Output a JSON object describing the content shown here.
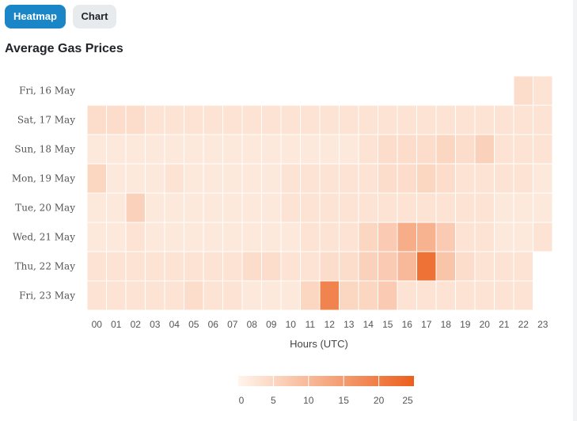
{
  "tabs": [
    {
      "label": "Heatmap",
      "active": true
    },
    {
      "label": "Chart",
      "active": false
    }
  ],
  "colors": {
    "accent": "#1a86c8",
    "scale_low": "#fff5ec",
    "scale_high": "#ec5f1c"
  },
  "chart_data": {
    "type": "heatmap",
    "title": "Average Gas Prices",
    "xlabel": "Hours (UTC)",
    "ylabel": "",
    "x": [
      "00",
      "01",
      "02",
      "03",
      "04",
      "05",
      "06",
      "07",
      "08",
      "09",
      "10",
      "11",
      "12",
      "13",
      "14",
      "15",
      "16",
      "17",
      "18",
      "19",
      "20",
      "21",
      "22",
      "23"
    ],
    "y": [
      "Fri, 16 May",
      "Sat, 17 May",
      "Sun, 18 May",
      "Mon, 19 May",
      "Tue, 20 May",
      "Wed, 21 May",
      "Thu, 22 May",
      "Fri, 23 May"
    ],
    "values": [
      [
        null,
        null,
        null,
        null,
        null,
        null,
        null,
        null,
        null,
        null,
        null,
        null,
        null,
        null,
        null,
        null,
        null,
        null,
        null,
        null,
        null,
        null,
        4,
        3
      ],
      [
        4,
        4,
        4,
        3,
        3,
        3,
        3,
        3,
        3,
        3,
        3,
        3,
        3,
        3,
        3,
        3,
        3,
        3,
        3,
        3,
        3,
        3,
        3,
        3
      ],
      [
        2,
        2,
        2,
        2,
        2,
        2,
        2,
        2,
        2,
        2,
        2,
        2,
        2,
        2,
        3,
        4,
        4,
        4,
        5,
        4,
        6,
        3,
        3,
        3
      ],
      [
        5,
        2,
        2,
        2,
        3,
        2,
        2,
        2,
        2,
        2,
        3,
        3,
        3,
        3,
        3,
        4,
        4,
        5,
        4,
        3,
        3,
        3,
        3,
        2
      ],
      [
        2,
        2,
        6,
        2,
        2,
        2,
        2,
        2,
        2,
        2,
        3,
        3,
        3,
        3,
        3,
        3,
        3,
        3,
        3,
        3,
        3,
        2,
        2,
        2
      ],
      [
        2,
        2,
        3,
        2,
        2,
        2,
        2,
        2,
        2,
        2,
        2,
        3,
        3,
        3,
        5,
        7,
        12,
        11,
        7,
        3,
        3,
        2,
        2,
        3
      ],
      [
        3,
        3,
        3,
        3,
        3,
        3,
        3,
        3,
        4,
        4,
        3,
        3,
        4,
        4,
        6,
        7,
        10,
        22,
        8,
        4,
        3,
        3,
        3,
        null
      ],
      [
        3,
        3,
        3,
        3,
        3,
        4,
        3,
        3,
        2,
        2,
        2,
        5,
        19,
        5,
        5,
        7,
        3,
        3,
        3,
        3,
        3,
        3,
        3,
        null
      ]
    ],
    "zlim": [
      0,
      25
    ],
    "colorbar": {
      "ticks": [
        0,
        5,
        10,
        15,
        20,
        25
      ],
      "tick_labels": [
        "0",
        "5",
        "10",
        "15",
        "20",
        "25"
      ]
    },
    "grid": false,
    "legend": "bottom"
  }
}
